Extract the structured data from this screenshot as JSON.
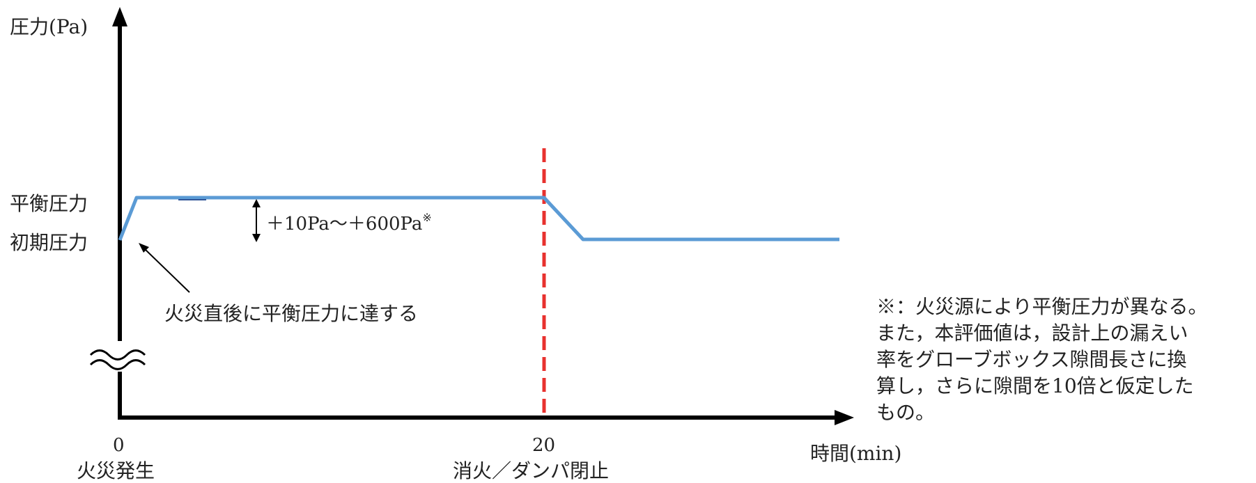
{
  "axes": {
    "y_label": "圧力(Pa)",
    "x_label": "時間(min)",
    "y_tick_equilibrium": "平衡圧力",
    "y_tick_initial": "初期圧力",
    "x_tick_0": "0",
    "x_tick_0_caption": "火災発生",
    "x_tick_20": "20",
    "x_tick_20_caption": "消火／ダンパ閉止"
  },
  "annotations": {
    "pressure_range": "＋10Pa～＋600Pa",
    "pressure_range_mark": "※",
    "arrival_note": "火災直後に平衡圧力に達する"
  },
  "footnote": {
    "lines": [
      "※：火災源により平衡圧力が異なる。",
      "また，本評価値は，設計上の漏えい",
      "率をグローブボックス隙間長さに換",
      "算し，さらに隙間を10倍と仮定した",
      "もの。"
    ]
  },
  "colors": {
    "pressure_curve": "#5b9bd5",
    "extinguish_line": "#e8312e",
    "axis": "#000000"
  },
  "icons": {
    "axis_break": "double-wave-break-icon"
  }
}
